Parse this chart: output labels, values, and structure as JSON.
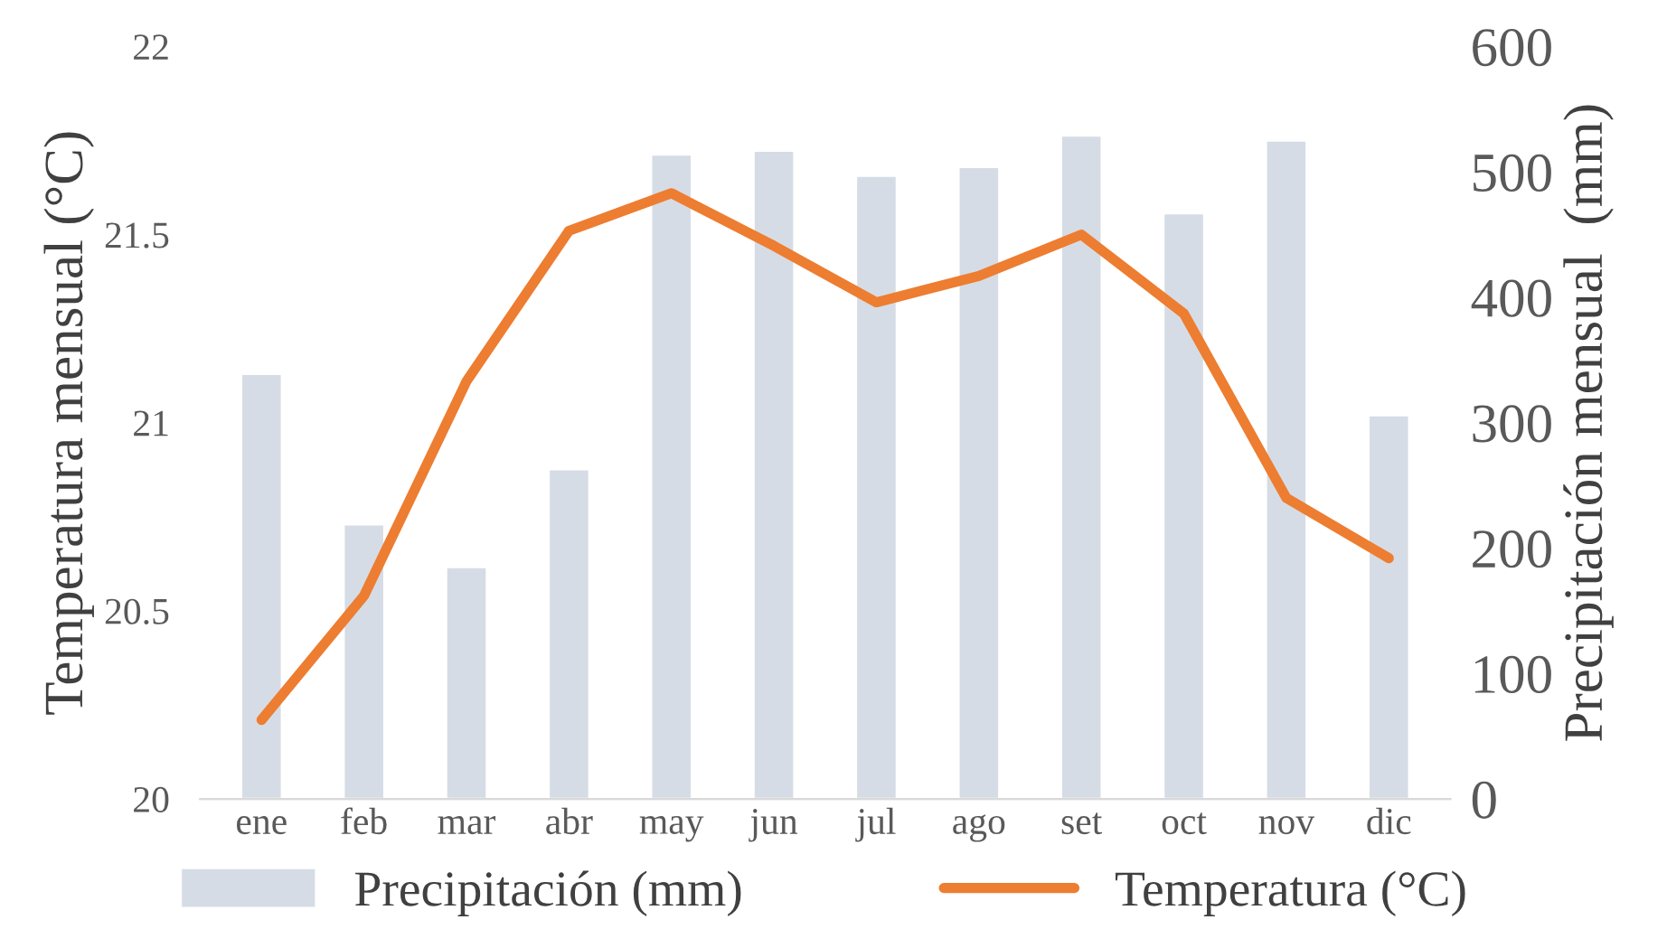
{
  "chart_data": {
    "type": "bar",
    "categories": [
      "ene",
      "feb",
      "mar",
      "abr",
      "may",
      "jun",
      "jul",
      "ago",
      "set",
      "oct",
      "nov",
      "dic"
    ],
    "ylabel": "Temperatura mensual (°C)",
    "y2label": "Precipitación mensual  (mm)",
    "ylim": [
      20,
      22
    ],
    "yticks": [
      20,
      20.5,
      21,
      21.5,
      22
    ],
    "y2lim": [
      0,
      600
    ],
    "y2ticks": [
      0,
      100,
      200,
      300,
      400,
      500,
      600
    ],
    "grid": false,
    "legend": "bottom",
    "series": [
      {
        "name": "Precipitación (mm)",
        "axis": "y2",
        "color": "#d6dce5",
        "values": [
          339,
          219,
          185,
          263,
          514,
          517,
          497,
          504,
          529,
          467,
          525,
          306
        ]
      },
      {
        "name": "Temperatura (°C)",
        "type": "line",
        "color": "#ed7d31",
        "values": [
          20.21,
          20.54,
          21.11,
          21.51,
          21.61,
          21.47,
          21.32,
          21.39,
          21.5,
          21.29,
          20.8,
          20.64
        ]
      }
    ]
  }
}
